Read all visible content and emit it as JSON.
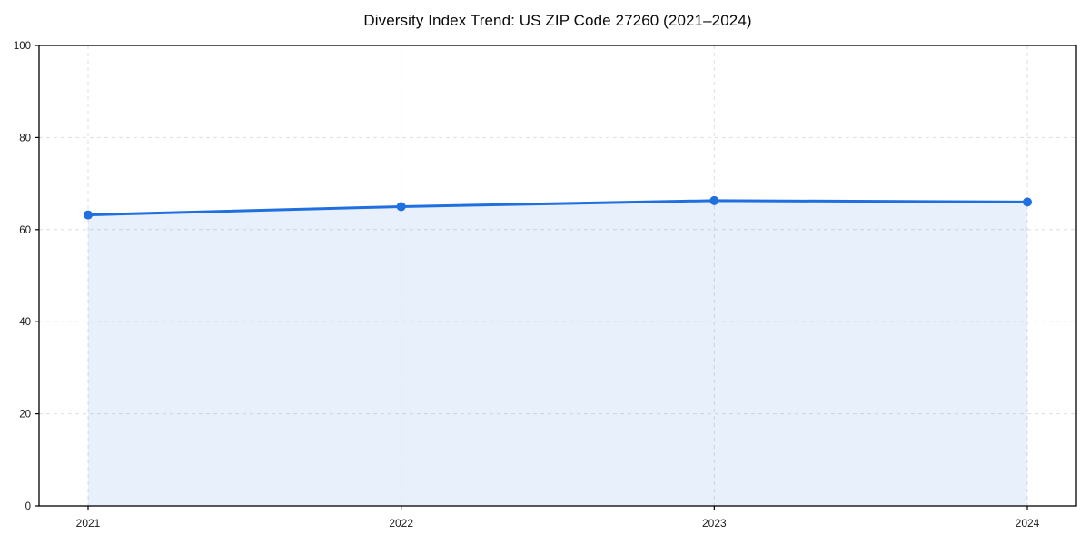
{
  "chart_data": {
    "type": "area",
    "title": "Diversity Index Trend: US ZIP Code 27260 (2021–2024)",
    "x": [
      2021,
      2022,
      2023,
      2024
    ],
    "series": [
      {
        "name": "Diversity Index",
        "values": [
          63.2,
          65.0,
          66.3,
          66.0
        ]
      }
    ],
    "xlabel": "",
    "ylabel": "",
    "ylim": [
      0,
      100
    ],
    "yticks": [
      0,
      20,
      40,
      60,
      80,
      100
    ],
    "grid": "dashed",
    "legend": "none",
    "colors": {
      "line": "#1f6fe0",
      "marker": "#1f6fe0",
      "fill": "#1f6fe0",
      "fill_opacity": 0.1,
      "grid": "#dedede",
      "axis": "#000000",
      "tick_label": "#1a1a1a",
      "title": "#0a0a0a",
      "background": "#ffffff"
    }
  }
}
